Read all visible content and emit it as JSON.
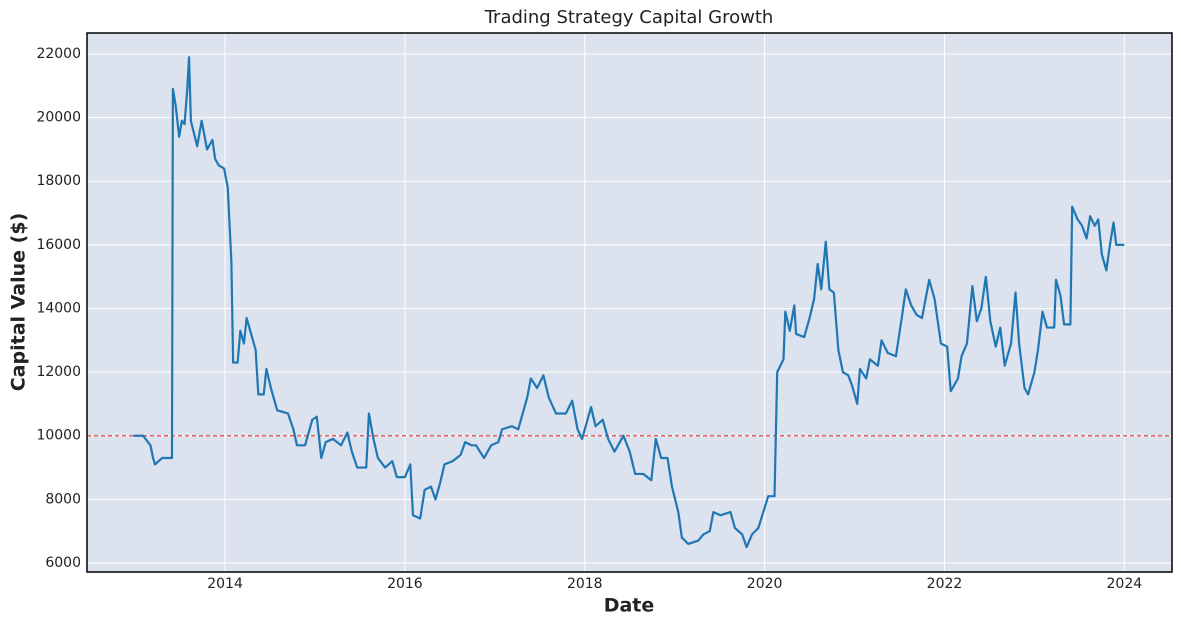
{
  "chart_data": {
    "type": "line",
    "title": "Trading Strategy Capital Growth",
    "x_label": "Date",
    "y_label": "Capital Value ($)",
    "xlim": [
      2012.465,
      2024.53
    ],
    "xticks": [
      2014,
      2016,
      2018,
      2020,
      2022,
      2024
    ],
    "ylim": [
      5717,
      22660
    ],
    "yticks": [
      6000,
      8000,
      10000,
      12000,
      14000,
      16000,
      18000,
      20000,
      22000
    ],
    "grid": true,
    "background": "#dce2ee",
    "reference_line": {
      "value": 10000,
      "color": "#e8423f",
      "dash": true
    },
    "series": [
      {
        "name": "Capital",
        "color": "#1f77b4",
        "x": [
          2012.98,
          2013.09,
          2013.17,
          2013.2,
          2013.22,
          2013.3,
          2013.41,
          2013.42,
          2013.45,
          2013.49,
          2013.52,
          2013.55,
          2013.58,
          2013.6,
          2013.62,
          2013.69,
          2013.74,
          2013.8,
          2013.86,
          2013.89,
          2013.93,
          2013.99,
          2014.03,
          2014.07,
          2014.09,
          2014.14,
          2014.17,
          2014.21,
          2014.24,
          2014.3,
          2014.34,
          2014.37,
          2014.43,
          2014.46,
          2014.51,
          2014.58,
          2014.7,
          2014.76,
          2014.8,
          2014.89,
          2014.97,
          2015.02,
          2015.07,
          2015.12,
          2015.2,
          2015.29,
          2015.36,
          2015.41,
          2015.47,
          2015.57,
          2015.6,
          2015.65,
          2015.7,
          2015.78,
          2015.86,
          2015.91,
          2016.0,
          2016.06,
          2016.09,
          2016.17,
          2016.22,
          2016.29,
          2016.34,
          2016.39,
          2016.44,
          2016.53,
          2016.62,
          2016.67,
          2016.74,
          2016.79,
          2016.88,
          2016.96,
          2017.04,
          2017.08,
          2017.19,
          2017.26,
          2017.36,
          2017.4,
          2017.47,
          2017.54,
          2017.6,
          2017.68,
          2017.79,
          2017.86,
          2017.92,
          2017.97,
          2018.07,
          2018.12,
          2018.2,
          2018.26,
          2018.33,
          2018.43,
          2018.5,
          2018.56,
          2018.65,
          2018.74,
          2018.79,
          2018.85,
          2018.92,
          2018.97,
          2019.04,
          2019.08,
          2019.15,
          2019.26,
          2019.32,
          2019.39,
          2019.43,
          2019.51,
          2019.62,
          2019.67,
          2019.75,
          2019.8,
          2019.86,
          2019.93,
          2020.04,
          2020.11,
          2020.14,
          2020.21,
          2020.23,
          2020.28,
          2020.33,
          2020.35,
          2020.44,
          2020.5,
          2020.55,
          2020.59,
          2020.63,
          2020.68,
          2020.72,
          2020.77,
          2020.82,
          2020.87,
          2020.93,
          2020.97,
          2021.03,
          2021.06,
          2021.13,
          2021.17,
          2021.26,
          2021.3,
          2021.37,
          2021.46,
          2021.53,
          2021.57,
          2021.63,
          2021.69,
          2021.75,
          2021.83,
          2021.89,
          2021.96,
          2022.03,
          2022.07,
          2022.15,
          2022.19,
          2022.25,
          2022.31,
          2022.36,
          2022.41,
          2022.46,
          2022.51,
          2022.57,
          2022.62,
          2022.67,
          2022.74,
          2022.79,
          2022.83,
          2022.89,
          2022.93,
          2023.0,
          2023.04,
          2023.09,
          2023.14,
          2023.22,
          2023.24,
          2023.29,
          2023.33,
          2023.4,
          2023.42,
          2023.48,
          2023.53,
          2023.58,
          2023.62,
          2023.67,
          2023.71,
          2023.75,
          2023.8,
          2023.84,
          2023.88,
          2023.91,
          2024.0
        ],
        "values": [
          10000,
          10000,
          9700,
          9300,
          9100,
          9300,
          9300,
          20900,
          20400,
          19400,
          19900,
          19800,
          20900,
          21900,
          19900,
          19100,
          19900,
          19000,
          19300,
          18700,
          18500,
          18400,
          17800,
          15500,
          12300,
          12300,
          13300,
          12900,
          13700,
          13100,
          12700,
          11300,
          11300,
          12100,
          11500,
          10800,
          10700,
          10200,
          9700,
          9700,
          10500,
          10600,
          9300,
          9800,
          9900,
          9700,
          10100,
          9500,
          9000,
          9000,
          10700,
          9900,
          9300,
          9000,
          9200,
          8700,
          8700,
          9100,
          7500,
          7400,
          8300,
          8400,
          8000,
          8500,
          9100,
          9200,
          9400,
          9800,
          9700,
          9700,
          9300,
          9700,
          9800,
          10200,
          10300,
          10200,
          11200,
          11800,
          11500,
          11900,
          11200,
          10700,
          10700,
          11100,
          10200,
          9900,
          10900,
          10300,
          10500,
          9900,
          9500,
          10000,
          9500,
          8800,
          8800,
          8600,
          9900,
          9300,
          9300,
          8400,
          7600,
          6800,
          6600,
          6700,
          6900,
          7000,
          7600,
          7500,
          7600,
          7100,
          6900,
          6500,
          6900,
          7100,
          8100,
          8100,
          12000,
          12400,
          13900,
          13300,
          14100,
          13200,
          13100,
          13700,
          14300,
          15400,
          14600,
          16100,
          14600,
          14500,
          12700,
          12000,
          11900,
          11600,
          11000,
          12100,
          11800,
          12400,
          12200,
          13000,
          12600,
          12500,
          13800,
          14600,
          14100,
          13800,
          13700,
          14900,
          14300,
          12900,
          12800,
          11400,
          11800,
          12500,
          12900,
          14700,
          13600,
          14000,
          15000,
          13600,
          12800,
          13400,
          12200,
          12900,
          14500,
          12900,
          11500,
          11300,
          12000,
          12700,
          13900,
          13400,
          13400,
          14900,
          14400,
          13500,
          13500,
          17200,
          16800,
          16600,
          16200,
          16900,
          16600,
          16800,
          15700,
          15200,
          16000,
          16700,
          16000,
          16000
        ]
      }
    ]
  }
}
